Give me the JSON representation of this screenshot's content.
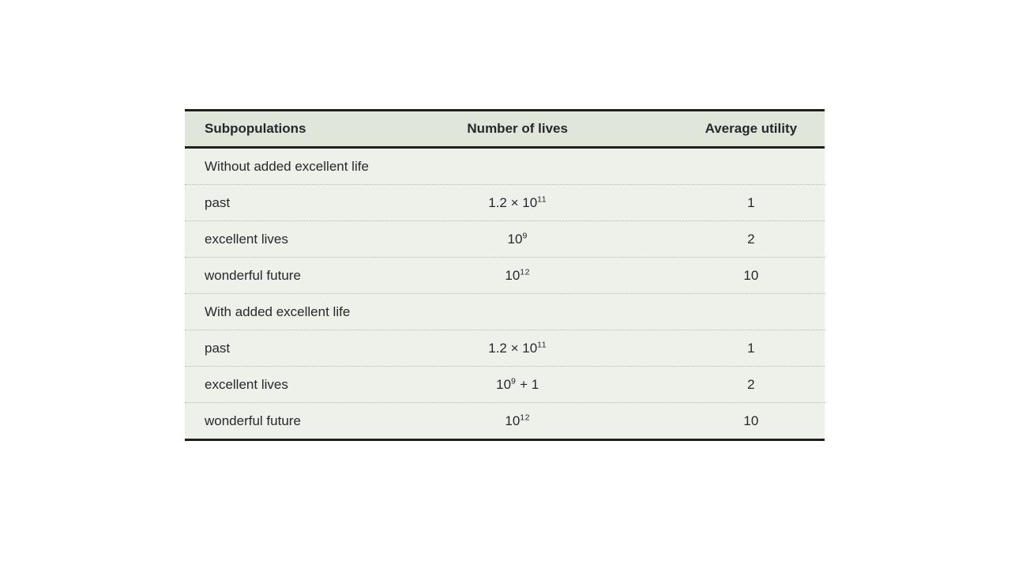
{
  "page": {
    "background": "#ffffff"
  },
  "table": {
    "columns": [
      "Subpopulations",
      "Number of lives",
      "Average utility"
    ],
    "colors": {
      "header_bg": "#e0e6da",
      "body_bg": "#edf1e9",
      "rule": "#1f201e",
      "dotted_divider": "#b3b9ad",
      "text": "#26292c"
    },
    "sections": [
      {
        "label": "Without added excellent life",
        "rows": [
          {
            "name": "past",
            "lives": {
              "prefix": "1.2 × 10",
              "sup": "11",
              "suffix": ""
            },
            "utility": "1"
          },
          {
            "name": "excellent lives",
            "lives": {
              "prefix": "10",
              "sup": "9",
              "suffix": ""
            },
            "utility": "2"
          },
          {
            "name": "wonderful future",
            "lives": {
              "prefix": "10",
              "sup": "12",
              "suffix": ""
            },
            "utility": "10"
          }
        ]
      },
      {
        "label": "With added excellent life",
        "rows": [
          {
            "name": "past",
            "lives": {
              "prefix": "1.2 × 10",
              "sup": "11",
              "suffix": ""
            },
            "utility": "1"
          },
          {
            "name": "excellent lives",
            "lives": {
              "prefix": "10",
              "sup": "9",
              "suffix": " + 1"
            },
            "utility": "2"
          },
          {
            "name": "wonderful future",
            "lives": {
              "prefix": "10",
              "sup": "12",
              "suffix": ""
            },
            "utility": "10"
          }
        ]
      }
    ]
  }
}
